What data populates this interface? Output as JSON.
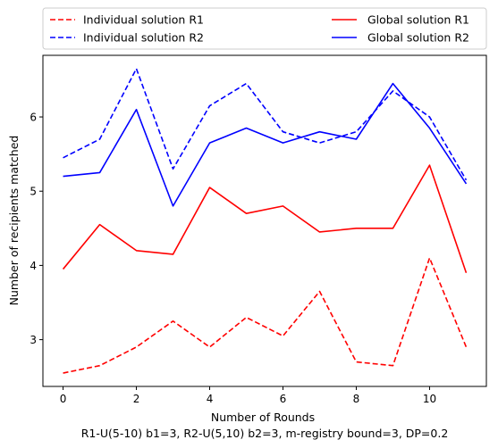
{
  "chart_data": {
    "type": "line",
    "xlabel": "Number of Rounds",
    "ylabel": "Number of recipients matched",
    "subtitle": "R1-U(5-10) b1=3, R2-U(5,10) b2=3, m-registry bound=3, DP=0.2",
    "xlim": [
      -0.55,
      11.55
    ],
    "ylim": [
      2.37,
      6.83
    ],
    "xticks": [
      0,
      2,
      4,
      6,
      8,
      10
    ],
    "yticks": [
      3,
      4,
      5,
      6
    ],
    "grid": false,
    "legend_placement": "top (outside plot, two columns)",
    "x": [
      0,
      1,
      2,
      3,
      4,
      5,
      6,
      7,
      8,
      9,
      10,
      11
    ],
    "series": [
      {
        "name": "Individual solution R1",
        "color": "#ff0000",
        "style": "dashed",
        "values": [
          2.55,
          2.65,
          2.9,
          3.25,
          2.9,
          3.3,
          3.05,
          3.65,
          2.7,
          2.65,
          4.1,
          2.9
        ]
      },
      {
        "name": "Individual solution R2",
        "color": "#0000ff",
        "style": "dashed",
        "values": [
          5.45,
          5.7,
          6.65,
          5.3,
          6.15,
          6.45,
          5.8,
          5.65,
          5.8,
          6.35,
          6.0,
          5.15
        ]
      },
      {
        "name": "Global solution R1",
        "color": "#ff0000",
        "style": "solid",
        "values": [
          3.95,
          4.55,
          4.2,
          4.15,
          5.05,
          4.7,
          4.8,
          4.45,
          4.5,
          4.5,
          5.35,
          3.9
        ]
      },
      {
        "name": "Global solution R2",
        "color": "#0000ff",
        "style": "solid",
        "values": [
          5.2,
          5.25,
          6.1,
          4.8,
          5.65,
          5.85,
          5.65,
          5.8,
          5.7,
          6.45,
          5.85,
          5.1
        ]
      }
    ]
  }
}
